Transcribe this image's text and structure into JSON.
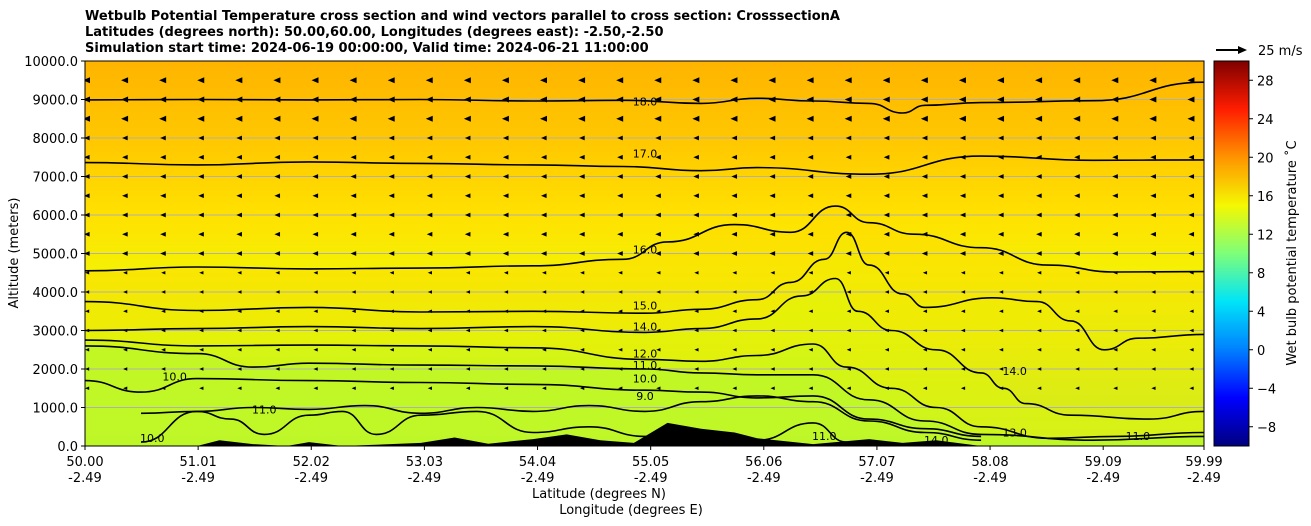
{
  "chart_data": {
    "type": "contourf",
    "title_lines": [
      "Wetbulb Potential Temperature cross section and wind vectors parallel to cross section: CrosssectionA",
      "Latitudes (degrees north): 50.00,60.00, Longitudes (degrees east): -2.50,-2.50",
      "Simulation start time: 2024-06-19 00:00:00, Valid time: 2024-06-21 11:00:00"
    ],
    "ylabel": "Altitude (meters)",
    "xlabel_lat": "Latitude (degrees N)",
    "xlabel_lon": "Longitude (degrees E)",
    "ylim": [
      0,
      10000
    ],
    "yticks": [
      "0.0",
      "1000.0",
      "2000.0",
      "3000.0",
      "4000.0",
      "5000.0",
      "6000.0",
      "7000.0",
      "8000.0",
      "9000.0",
      "10000.0"
    ],
    "xlim": [
      50.0,
      59.99
    ],
    "xticks_lat": [
      "50.00",
      "51.01",
      "52.02",
      "53.03",
      "54.04",
      "55.05",
      "56.06",
      "57.07",
      "58.08",
      "59.09",
      "59.99"
    ],
    "xticks_lat_values": [
      50.0,
      51.01,
      52.02,
      53.03,
      54.04,
      55.05,
      56.06,
      57.07,
      58.08,
      59.09,
      59.99
    ],
    "xticks_lon": [
      "-2.49",
      "-2.49",
      "-2.49",
      "-2.49",
      "-2.49",
      "-2.49",
      "-2.49",
      "-2.49",
      "-2.49",
      "-2.49",
      "-2.49"
    ],
    "colorbar": {
      "label": "Wet bulb potential temperature ˚C",
      "range": [
        -10,
        30
      ],
      "ticks": [
        "−8",
        "−4",
        "0",
        "4",
        "8",
        "12",
        "16",
        "20",
        "24",
        "28"
      ],
      "tick_values": [
        -8,
        -4,
        0,
        4,
        8,
        12,
        16,
        20,
        24,
        28
      ]
    },
    "quiver_key": "25 m/s",
    "contour_lines": [
      {
        "level": "18.0",
        "points": [
          [
            50.0,
            8990
          ],
          [
            51.0,
            9000
          ],
          [
            52.0,
            8990
          ],
          [
            53.0,
            9000
          ],
          [
            54.0,
            8960
          ],
          [
            54.8,
            8980
          ],
          [
            55.5,
            8900
          ],
          [
            56.0,
            9030
          ],
          [
            56.5,
            8960
          ],
          [
            57.0,
            8900
          ],
          [
            57.3,
            8650
          ],
          [
            57.5,
            8850
          ],
          [
            58.0,
            8920
          ],
          [
            59.0,
            8970
          ],
          [
            59.99,
            9450
          ]
        ]
      },
      {
        "level": "17.0",
        "points": [
          [
            50.0,
            7360
          ],
          [
            51.0,
            7300
          ],
          [
            52.0,
            7380
          ],
          [
            53.0,
            7340
          ],
          [
            54.0,
            7300
          ],
          [
            54.8,
            7260
          ],
          [
            55.5,
            7150
          ],
          [
            56.0,
            7230
          ],
          [
            57.0,
            7060
          ],
          [
            58.0,
            7530
          ],
          [
            59.0,
            7420
          ],
          [
            59.99,
            7430
          ]
        ]
      },
      {
        "level": "16.0",
        "points": [
          [
            50.0,
            4550
          ],
          [
            51.0,
            4650
          ],
          [
            52.0,
            4600
          ],
          [
            53.0,
            4620
          ],
          [
            54.0,
            4680
          ],
          [
            54.8,
            4850
          ],
          [
            55.2,
            5300
          ],
          [
            55.8,
            5750
          ],
          [
            56.3,
            5550
          ],
          [
            56.7,
            6230
          ],
          [
            57.0,
            5800
          ],
          [
            57.4,
            5500
          ],
          [
            58.0,
            5150
          ],
          [
            58.6,
            4700
          ],
          [
            59.2,
            4520
          ],
          [
            59.99,
            4530
          ]
        ]
      },
      {
        "level": "15.0",
        "points": [
          [
            50.0,
            3750
          ],
          [
            51.0,
            3520
          ],
          [
            52.0,
            3600
          ],
          [
            53.0,
            3480
          ],
          [
            54.0,
            3500
          ],
          [
            55.0,
            3450
          ],
          [
            55.5,
            3550
          ],
          [
            56.0,
            3800
          ],
          [
            56.3,
            4250
          ],
          [
            56.6,
            4850
          ],
          [
            56.8,
            5550
          ],
          [
            57.0,
            4700
          ],
          [
            57.3,
            3950
          ],
          [
            57.5,
            3600
          ],
          [
            58.1,
            3850
          ],
          [
            58.5,
            3750
          ],
          [
            58.8,
            3250
          ],
          [
            59.1,
            2500
          ],
          [
            59.4,
            2800
          ],
          [
            59.99,
            2900
          ]
        ]
      },
      {
        "level": "14.0",
        "points": [
          [
            50.0,
            3000
          ],
          [
            51.0,
            3050
          ],
          [
            52.0,
            3100
          ],
          [
            53.0,
            3050
          ],
          [
            54.0,
            3100
          ],
          [
            55.0,
            2950
          ],
          [
            55.5,
            3050
          ],
          [
            56.0,
            3300
          ],
          [
            56.4,
            3900
          ],
          [
            56.7,
            4350
          ],
          [
            56.9,
            3500
          ],
          [
            57.2,
            3000
          ],
          [
            57.6,
            2500
          ],
          [
            58.0,
            1900
          ],
          [
            58.2,
            1500
          ],
          [
            58.4,
            1100
          ],
          [
            58.8,
            800
          ],
          [
            59.5,
            700
          ],
          [
            59.99,
            900
          ]
        ]
      },
      {
        "level": "12.0",
        "points": [
          [
            50.0,
            2750
          ],
          [
            51.0,
            2600
          ],
          [
            52.0,
            2620
          ],
          [
            53.0,
            2600
          ],
          [
            54.0,
            2550
          ],
          [
            55.0,
            2250
          ],
          [
            55.5,
            2200
          ],
          [
            56.0,
            2350
          ],
          [
            56.5,
            2650
          ],
          [
            56.8,
            2050
          ],
          [
            57.2,
            1500
          ],
          [
            57.6,
            1000
          ],
          [
            58.0,
            500
          ],
          [
            58.6,
            200
          ],
          [
            59.2,
            250
          ],
          [
            59.99,
            350
          ]
        ]
      },
      {
        "level": "11.0",
        "points": [
          [
            50.0,
            2600
          ],
          [
            51.0,
            2400
          ],
          [
            51.5,
            2050
          ],
          [
            52.0,
            2150
          ],
          [
            53.0,
            2100
          ],
          [
            54.0,
            2080
          ],
          [
            55.0,
            2000
          ],
          [
            55.5,
            1900
          ],
          [
            56.0,
            1850
          ],
          [
            56.5,
            1850
          ],
          [
            57.0,
            1200
          ],
          [
            57.5,
            650
          ],
          [
            58.0,
            300
          ],
          [
            59.0,
            150
          ],
          [
            59.99,
            250
          ]
        ]
      },
      {
        "level": "10.0",
        "points": [
          [
            50.0,
            1700
          ],
          [
            50.5,
            1400
          ],
          [
            51.0,
            1750
          ],
          [
            52.0,
            1700
          ],
          [
            53.0,
            1650
          ],
          [
            54.0,
            1600
          ],
          [
            55.0,
            1450
          ],
          [
            55.5,
            1400
          ],
          [
            56.0,
            1250
          ],
          [
            56.5,
            1300
          ],
          [
            57.0,
            700
          ],
          [
            57.5,
            450
          ],
          [
            58.0,
            250
          ]
        ]
      },
      {
        "level": "9.0",
        "points": [
          [
            50.5,
            850
          ],
          [
            51.0,
            900
          ],
          [
            51.5,
            1000
          ],
          [
            52.0,
            950
          ],
          [
            52.5,
            1050
          ],
          [
            53.0,
            850
          ],
          [
            53.5,
            1000
          ],
          [
            54.0,
            900
          ],
          [
            54.5,
            1050
          ],
          [
            55.0,
            900
          ],
          [
            55.5,
            1150
          ],
          [
            56.0,
            1300
          ],
          [
            56.5,
            1150
          ],
          [
            57.0,
            650
          ],
          [
            57.5,
            350
          ],
          [
            58.0,
            150
          ]
        ]
      },
      {
        "level": "13.0",
        "points": [
          [
            50.5,
            100
          ],
          [
            51.0,
            900
          ],
          [
            51.3,
            700
          ],
          [
            51.6,
            300
          ],
          [
            52.0,
            800
          ],
          [
            52.3,
            900
          ],
          [
            52.6,
            300
          ],
          [
            53.0,
            800
          ],
          [
            53.5,
            900
          ],
          [
            54.0,
            350
          ],
          [
            54.5,
            500
          ],
          [
            55.0,
            250
          ],
          [
            55.5,
            400
          ],
          [
            56.0,
            150
          ],
          [
            56.5,
            600
          ],
          [
            56.8,
            100
          ]
        ]
      }
    ],
    "contour_labels": [
      {
        "text": "18.0",
        "x": 55.0,
        "y": 8850
      },
      {
        "text": "17.0",
        "x": 55.0,
        "y": 7500
      },
      {
        "text": "16.0",
        "x": 55.0,
        "y": 5000
      },
      {
        "text": "15.0",
        "x": 55.0,
        "y": 3550
      },
      {
        "text": "14.0",
        "x": 55.0,
        "y": 3000
      },
      {
        "text": "12.0",
        "x": 55.0,
        "y": 2300
      },
      {
        "text": "11.0",
        "x": 55.0,
        "y": 2000
      },
      {
        "text": "10.0",
        "x": 55.0,
        "y": 1650
      },
      {
        "text": "9.0",
        "x": 55.0,
        "y": 1200
      },
      {
        "text": "14.0",
        "x": 58.3,
        "y": 1850
      },
      {
        "text": "10.0",
        "x": 50.8,
        "y": 1700
      },
      {
        "text": "11.0",
        "x": 51.6,
        "y": 850
      },
      {
        "text": "13.0",
        "x": 58.3,
        "y": 250
      },
      {
        "text": "11.0",
        "x": 59.4,
        "y": 150
      },
      {
        "text": "10.0",
        "x": 50.6,
        "y": 100
      },
      {
        "text": "11.0",
        "x": 56.6,
        "y": 150
      },
      {
        "text": "14.0",
        "x": 57.6,
        "y": 50
      }
    ],
    "terrain": [
      [
        50.0,
        0
      ],
      [
        51.0,
        0
      ],
      [
        51.2,
        150
      ],
      [
        51.5,
        50
      ],
      [
        51.8,
        0
      ],
      [
        52.0,
        100
      ],
      [
        52.3,
        0
      ],
      [
        53.0,
        80
      ],
      [
        53.3,
        220
      ],
      [
        53.6,
        60
      ],
      [
        54.0,
        180
      ],
      [
        54.3,
        300
      ],
      [
        54.6,
        150
      ],
      [
        54.9,
        80
      ],
      [
        55.2,
        600
      ],
      [
        55.5,
        450
      ],
      [
        55.8,
        350
      ],
      [
        56.0,
        200
      ],
      [
        56.5,
        50
      ],
      [
        57.0,
        180
      ],
      [
        57.3,
        80
      ],
      [
        57.6,
        150
      ],
      [
        58.0,
        0
      ],
      [
        59.99,
        0
      ]
    ],
    "wind_rows_m": [
      9500,
      9000,
      8500,
      8000,
      7500,
      7000,
      6500,
      6000,
      5500,
      5000,
      4500,
      4000,
      3500,
      3000,
      2500,
      2000,
      1500
    ],
    "wind_columns_lat": [
      50.0,
      50.34,
      50.68,
      51.02,
      51.36,
      51.7,
      52.04,
      52.38,
      52.72,
      53.06,
      53.4,
      53.74,
      54.08,
      54.42,
      54.76,
      55.1,
      55.44,
      55.78,
      56.12,
      56.46,
      56.8,
      57.14,
      57.48,
      57.82,
      58.16,
      58.5,
      58.84,
      59.18,
      59.52,
      59.86
    ]
  }
}
